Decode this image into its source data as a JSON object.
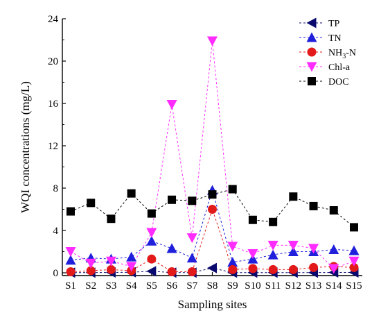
{
  "chart_data": {
    "type": "line",
    "title": "",
    "xlabel": "Sampling sites",
    "ylabel": "WQI concentrations (mg/L)",
    "ylim": [
      0,
      24
    ],
    "yticks": [
      0,
      4,
      8,
      12,
      16,
      20,
      24
    ],
    "grid": false,
    "legend_position": "top-right",
    "categories": [
      "S1",
      "S2",
      "S3",
      "S4",
      "S5",
      "S6",
      "S7",
      "S8",
      "S9",
      "S10",
      "S11",
      "S12",
      "S13",
      "S14",
      "S15"
    ],
    "series": [
      {
        "name": "TP",
        "marker": "triangle-left",
        "color": "#0a0a6e",
        "values": [
          0.02,
          0.02,
          0.03,
          0.05,
          0.15,
          0.02,
          0.02,
          0.45,
          0.02,
          0.02,
          0.02,
          0.02,
          0.02,
          0.03,
          0.03
        ]
      },
      {
        "name": "TN",
        "marker": "triangle-up",
        "color": "#1f1fdc",
        "values": [
          1.2,
          1.4,
          1.3,
          1.5,
          3.0,
          2.3,
          1.4,
          7.8,
          1.0,
          1.3,
          1.7,
          2.0,
          2.0,
          2.2,
          2.1
        ]
      },
      {
        "name": "NH3-N",
        "name_base": "NH",
        "name_sub": "3",
        "name_suffix": "-N",
        "marker": "circle",
        "color": "#e21a1a",
        "values": [
          0.1,
          0.2,
          0.3,
          0.2,
          1.3,
          0.1,
          0.1,
          6.0,
          0.3,
          0.4,
          0.3,
          0.3,
          0.5,
          0.6,
          0.5
        ]
      },
      {
        "name": "Chl-a",
        "marker": "triangle-down",
        "color": "#ff2bff",
        "values": [
          2.0,
          0.9,
          1.1,
          0.6,
          3.8,
          15.9,
          3.3,
          21.9,
          2.5,
          1.8,
          2.6,
          2.6,
          2.3,
          0.4,
          1.1
        ]
      },
      {
        "name": "DOC",
        "marker": "square",
        "color": "#000000",
        "values": [
          5.8,
          6.6,
          5.1,
          7.5,
          5.6,
          6.9,
          6.8,
          7.4,
          7.9,
          5.0,
          4.8,
          7.2,
          6.3,
          5.9,
          4.3
        ]
      }
    ]
  }
}
